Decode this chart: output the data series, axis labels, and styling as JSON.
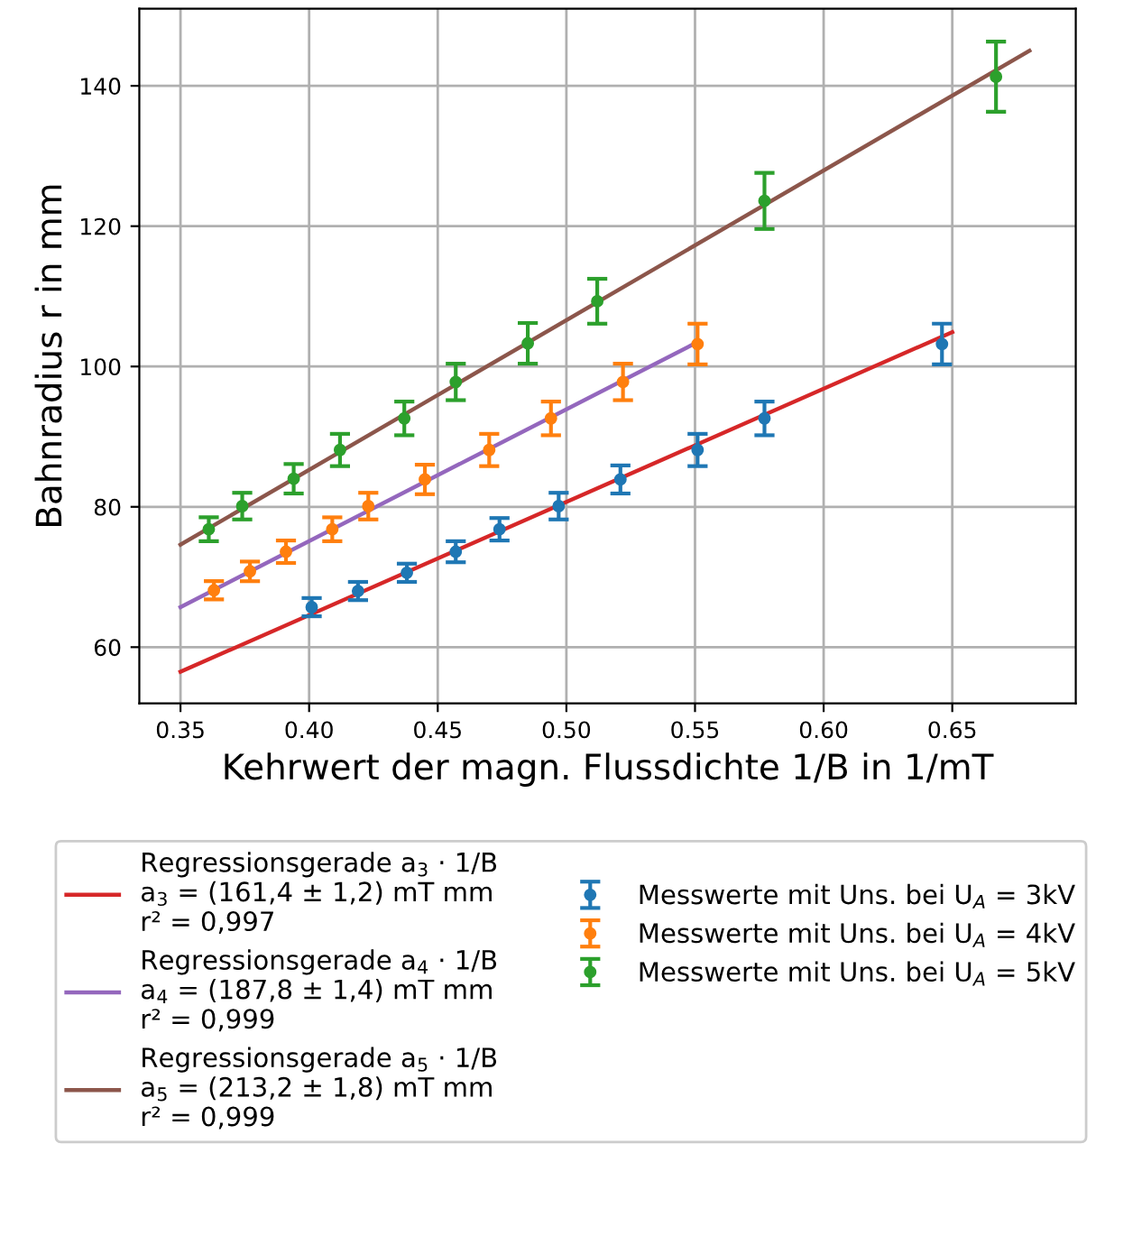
{
  "chart_data": {
    "type": "scatter",
    "xlabel": "Kehrwert der magn. Flussdichte 1/B in 1/mT",
    "ylabel": "Bahnradius r in mm",
    "xlim": [
      0.334,
      0.698
    ],
    "ylim": [
      52,
      151
    ],
    "xticks": [
      0.35,
      {
        "value": 0.4,
        "label": "0.40"
      },
      0.45,
      {
        "value": 0.5,
        "label": "0.50"
      },
      0.55,
      {
        "value": 0.6,
        "label": "0.60"
      },
      0.65
    ],
    "yticks": [
      60,
      80,
      100,
      120,
      140
    ],
    "grid": true,
    "legend": "bottom",
    "series": [
      {
        "type": "line",
        "marker": "none",
        "name": "Regressionsgerade a$_{3}$ · 1/B\na$_{3}$ = (161,4 ± 1,2) mT mm\nr² = 0,997",
        "color": "#d62728",
        "x": [
          0.35,
          0.65
        ],
        "values": [
          56.5,
          104.9
        ]
      },
      {
        "type": "line",
        "marker": "none",
        "name": "Regressionsgerade a$_{4}$ · 1/B\na$_{4}$ = (187,8 ± 1,4) mT mm\nr² = 0,999",
        "color": "#9467bd",
        "x": [
          0.35,
          0.55
        ],
        "values": [
          65.7,
          103.3
        ]
      },
      {
        "type": "line",
        "marker": "none",
        "name": "Regressionsgerade a$_{5}$ · 1/B\na$_{5}$ = (213,2 ± 1,8) mT mm\nr² = 0,999",
        "color": "#8c564b",
        "x": [
          0.35,
          0.68
        ],
        "values": [
          74.6,
          145.0
        ]
      },
      {
        "marker": "circle",
        "name": "Messwerte mit Uns. bei U$_{A}$ = 3kV",
        "color": "#1f77b4",
        "x": [
          0.401,
          0.419,
          0.438,
          0.457,
          0.474,
          0.497,
          0.521,
          0.551,
          0.577,
          0.646
        ],
        "values": [
          65.7,
          68.0,
          70.6,
          73.6,
          76.8,
          80.1,
          83.9,
          88.1,
          92.6,
          103.2
        ],
        "errors": [
          1.3,
          1.3,
          1.3,
          1.5,
          1.6,
          1.9,
          2.0,
          2.3,
          2.4,
          2.9
        ]
      },
      {
        "marker": "circle",
        "name": "Messwerte mit Uns. bei U$_{A}$ = 4kV",
        "color": "#ff7f0e",
        "x": [
          0.363,
          0.377,
          0.391,
          0.409,
          0.423,
          0.445,
          0.47,
          0.494,
          0.522,
          0.551
        ],
        "values": [
          68.1,
          70.8,
          73.6,
          76.8,
          80.1,
          83.9,
          88.1,
          92.6,
          97.8,
          103.2
        ],
        "errors": [
          1.3,
          1.4,
          1.6,
          1.7,
          1.9,
          2.1,
          2.3,
          2.4,
          2.6,
          2.9
        ]
      },
      {
        "marker": "circle",
        "name": "Messwerte mit Uns. bei U$_{A}$ = 5kV",
        "color": "#2ca02c",
        "x": [
          0.361,
          0.374,
          0.394,
          0.412,
          0.437,
          0.457,
          0.485,
          0.512,
          0.577,
          0.667
        ],
        "values": [
          76.8,
          80.1,
          84.0,
          88.1,
          92.6,
          97.8,
          103.3,
          109.3,
          123.6,
          141.3
        ],
        "errors": [
          1.7,
          1.9,
          2.1,
          2.3,
          2.4,
          2.6,
          2.9,
          3.2,
          4.0,
          5.0
        ]
      }
    ]
  }
}
